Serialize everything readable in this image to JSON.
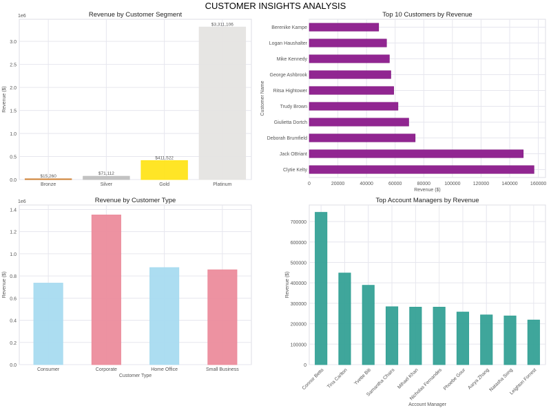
{
  "title": "CUSTOMER INSIGHTS ANALYSIS",
  "chart_data": [
    {
      "type": "bar",
      "orientation": "vertical",
      "title": "Revenue by Customer Segment",
      "xlabel": "",
      "ylabel": "Revenue ($)",
      "offset_label": "1e6",
      "categories": [
        "Bronze",
        "Silver",
        "Gold",
        "Platinum"
      ],
      "values": [
        15260,
        71112,
        411522,
        3311106
      ],
      "data_labels": [
        "$15,260",
        "$71,112",
        "$411,522",
        "$3,311,106"
      ],
      "colors": [
        "#cd7f32",
        "#c0c0c0",
        "#ffe41a",
        "#e5e4e2"
      ],
      "ylim": [
        0,
        3480000
      ],
      "yticks": [
        0,
        500000,
        1000000,
        1500000,
        2000000,
        2500000,
        3000000
      ],
      "ytick_labels": [
        "0.0",
        "0.5",
        "1.0",
        "1.5",
        "2.0",
        "2.5",
        "3.0"
      ],
      "grid": true
    },
    {
      "type": "bar",
      "orientation": "horizontal",
      "title": "Top 10 Customers by Revenue",
      "xlabel": "Revenue ($)",
      "ylabel": "Customer Name",
      "categories": [
        "Berenike Kampe",
        "Logan Haushalter",
        "Mike Kennedy",
        "George Ashbrook",
        "Ritsa Hightower",
        "Trudy Brown",
        "Giulietta Dortch",
        "Deborah Brumfield",
        "Jack OBriant",
        "Clytie Kelty"
      ],
      "values": [
        48500,
        54000,
        56000,
        57000,
        59000,
        62000,
        69500,
        74000,
        149500,
        157000
      ],
      "colors": [
        "#8b1a8b"
      ],
      "xlim": [
        0,
        165000
      ],
      "xticks": [
        0,
        20000,
        40000,
        60000,
        80000,
        100000,
        120000,
        140000,
        160000
      ],
      "xtick_labels": [
        "0",
        "20000",
        "40000",
        "60000",
        "80000",
        "100000",
        "120000",
        "140000",
        "160000"
      ],
      "grid": true
    },
    {
      "type": "bar",
      "orientation": "vertical",
      "title": "Revenue by Customer Type",
      "xlabel": "Customer Type",
      "ylabel": "Revenue ($)",
      "offset_label": "1e6",
      "categories": [
        "Consumer",
        "Corporate",
        "Home Office",
        "Small Business"
      ],
      "values": [
        735000,
        1350000,
        875000,
        855000
      ],
      "colors": [
        "#a8dbf0",
        "#ec8c9c",
        "#a8dbf0",
        "#ec8c9c"
      ],
      "ylim": [
        0,
        1440000
      ],
      "yticks": [
        0,
        200000,
        400000,
        600000,
        800000,
        1000000,
        1200000,
        1400000
      ],
      "ytick_labels": [
        "0.0",
        "0.2",
        "0.4",
        "0.6",
        "0.8",
        "1.0",
        "1.2",
        "1.4"
      ],
      "grid": true
    },
    {
      "type": "bar",
      "orientation": "vertical",
      "title": "Top Account Managers by Revenue",
      "xlabel": "Account Manager",
      "ylabel": "Revenue ($)",
      "categories": [
        "Connor Betts",
        "Tina Carlton",
        "Yvette Biti",
        "Samantha Chairs",
        "Mihael Khan",
        "Nicholas Fernandes",
        "Phoebe Gour",
        "Aarya Zhang",
        "Natasha Song",
        "Leighton Forrest"
      ],
      "values": [
        745000,
        448000,
        388000,
        283000,
        281000,
        281000,
        257000,
        243000,
        238000,
        218000
      ],
      "colors": [
        "#35a196"
      ],
      "ylim": [
        0,
        781000
      ],
      "yticks": [
        0,
        100000,
        200000,
        300000,
        400000,
        500000,
        600000,
        700000
      ],
      "ytick_labels": [
        "0",
        "100000",
        "200000",
        "300000",
        "400000",
        "500000",
        "600000",
        "700000"
      ],
      "rotate_xticks": true,
      "grid": true
    }
  ]
}
